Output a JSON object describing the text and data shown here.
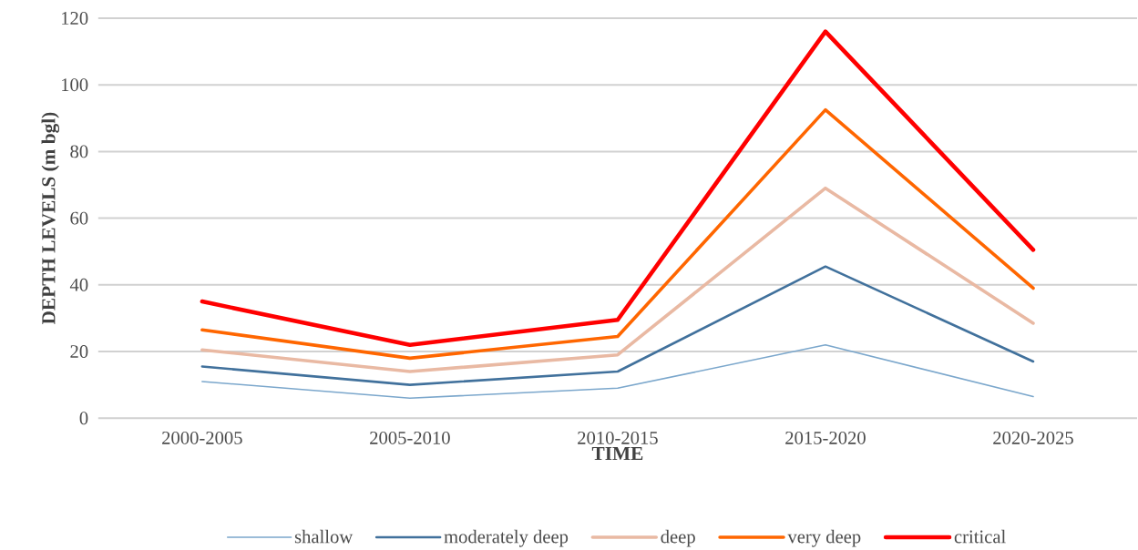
{
  "chart_data": {
    "type": "line",
    "xlabel": "TIME",
    "ylabel": "DEPTH LEVELS (m bgl)",
    "categories": [
      "2000-2005",
      "2005-2010",
      "2010-2015",
      "2015-2020",
      "2020-2025"
    ],
    "series": [
      {
        "name": "shallow",
        "color": "#7ba7cc",
        "values": [
          11,
          6,
          9,
          22,
          6.5
        ]
      },
      {
        "name": "moderately deep",
        "color": "#41719c",
        "values": [
          15.5,
          10,
          14,
          45.5,
          17
        ]
      },
      {
        "name": "deep",
        "color": "#e9b9a3",
        "values": [
          20.5,
          14,
          19,
          69,
          28.5
        ]
      },
      {
        "name": "very deep",
        "color": "#ff6600",
        "values": [
          26.5,
          18,
          24.5,
          92.5,
          39
        ]
      },
      {
        "name": "critical",
        "color": "#ff0000",
        "values": [
          35,
          22,
          29.5,
          116,
          50.5
        ]
      }
    ],
    "ylim": [
      0,
      120
    ],
    "yticks": [
      0,
      20,
      40,
      60,
      80,
      100,
      120
    ],
    "grid": "y",
    "legend": "bottom",
    "marker": "none",
    "line_style": "solid"
  }
}
